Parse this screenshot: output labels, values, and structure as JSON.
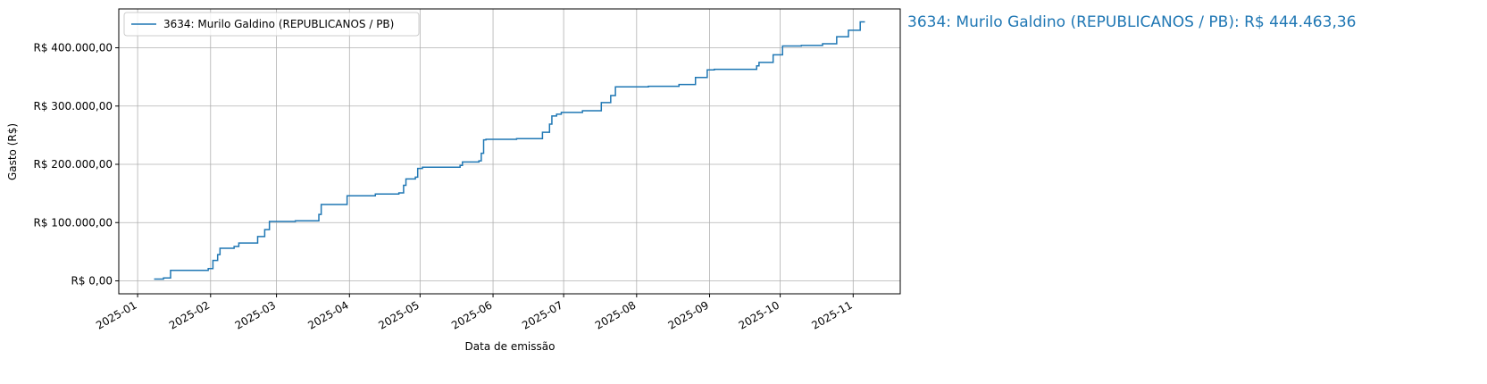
{
  "chart_data": {
    "type": "line",
    "drawstyle": "steps-post",
    "xlabel": "Data de emissão",
    "ylabel": "Gasto (R$)",
    "annotation": "3634: Murilo Galdino (REPUBLICANOS / PB): R$ 444.463,36",
    "grid": true,
    "legend": "upper left",
    "xlim": [
      "2024-12-24",
      "2025-11-21"
    ],
    "xticks": [
      "2025-01",
      "2025-02",
      "2025-03",
      "2025-04",
      "2025-05",
      "2025-06",
      "2025-07",
      "2025-08",
      "2025-09",
      "2025-10",
      "2025-11"
    ],
    "ylim": [
      -22223,
      466686
    ],
    "yticks": [
      {
        "value": 0,
        "label": "R$ 0,00"
      },
      {
        "value": 100000,
        "label": "R$ 100.000,00"
      },
      {
        "value": 200000,
        "label": "R$ 200.000,00"
      },
      {
        "value": 300000,
        "label": "R$ 300.000,00"
      },
      {
        "value": 400000,
        "label": "R$ 400.000,00"
      }
    ],
    "x": [
      "2025-01-08",
      "2025-01-12",
      "2025-01-15",
      "2025-01-31",
      "2025-02-02",
      "2025-02-04",
      "2025-02-05",
      "2025-02-11",
      "2025-02-13",
      "2025-02-21",
      "2025-02-24",
      "2025-02-26",
      "2025-03-09",
      "2025-03-19",
      "2025-03-20",
      "2025-03-31",
      "2025-04-08",
      "2025-04-12",
      "2025-04-22",
      "2025-04-24",
      "2025-04-25",
      "2025-04-29",
      "2025-04-30",
      "2025-05-02",
      "2025-05-18",
      "2025-05-19",
      "2025-05-26",
      "2025-05-27",
      "2025-05-28",
      "2025-05-29",
      "2025-06-11",
      "2025-06-22",
      "2025-06-25",
      "2025-06-26",
      "2025-06-28",
      "2025-06-30",
      "2025-07-09",
      "2025-07-17",
      "2025-07-21",
      "2025-07-23",
      "2025-08-06",
      "2025-08-19",
      "2025-08-26",
      "2025-08-31",
      "2025-09-03",
      "2025-09-21",
      "2025-09-22",
      "2025-09-28",
      "2025-10-02",
      "2025-10-10",
      "2025-10-19",
      "2025-10-25",
      "2025-10-30",
      "2025-11-04",
      "2025-11-06"
    ],
    "series": [
      {
        "name": "3634: Murilo Galdino (REPUBLICANOS / PB)",
        "color": "#1f77b4",
        "values": [
          3000,
          5000,
          18000,
          21000,
          35000,
          45000,
          56000,
          59000,
          65000,
          76000,
          88000,
          102000,
          103000,
          114000,
          131000,
          146000,
          146000,
          149000,
          151000,
          164000,
          175000,
          178000,
          193000,
          195000,
          198000,
          204000,
          206000,
          219000,
          242000,
          243000,
          244000,
          255000,
          269000,
          283000,
          286000,
          289000,
          292000,
          306000,
          318000,
          333000,
          334000,
          337000,
          349000,
          362000,
          363000,
          369000,
          375000,
          388000,
          403000,
          404000,
          407000,
          419000,
          430000,
          444463.36,
          444463.36
        ]
      }
    ]
  }
}
